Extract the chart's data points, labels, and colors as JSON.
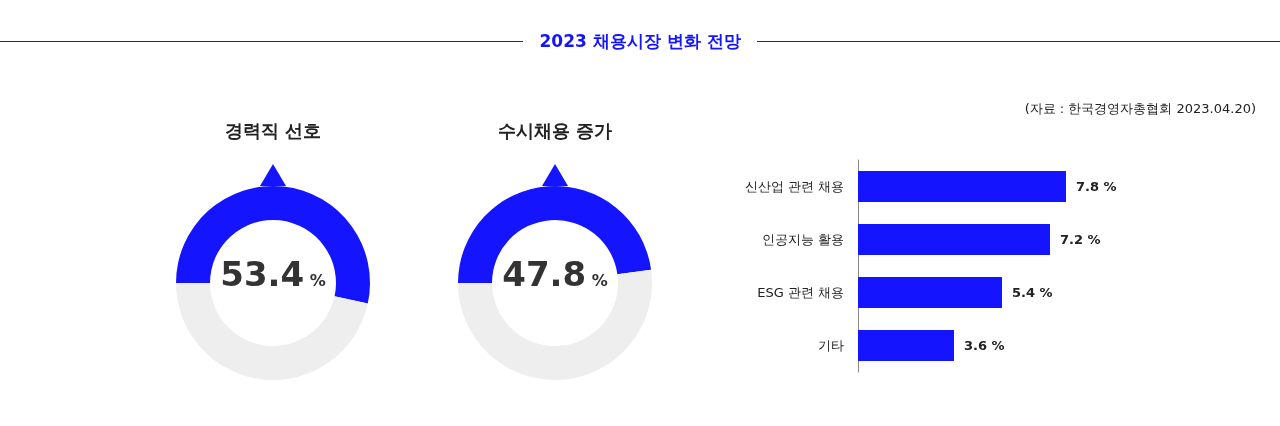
{
  "chart_data": [
    {
      "type": "other",
      "title": "2023 채용시장 변화 전망"
    },
    {
      "type": "donut",
      "title": "경력직 선호",
      "categories": [
        null,
        null
      ],
      "values": [
        53.4,
        46.6
      ],
      "colors": [
        "#1414ff",
        "#eeeeee"
      ],
      "value_labels": [
        "53.4 %",
        null
      ]
    },
    {
      "type": "donut",
      "title": "수시채용 증가",
      "categories": [
        null,
        null
      ],
      "values": [
        47.8,
        52.2
      ],
      "colors": [
        "#1414ff",
        "#eeeeee"
      ],
      "value_labels": [
        "47.8 %",
        null
      ]
    },
    {
      "type": "bar",
      "orientation": "horizontal",
      "categories": [
        "신산업 관련 채용",
        "인공지능 활용",
        "ESG 관련 채용",
        "기타"
      ],
      "values": [
        7.8,
        7.2,
        5.4,
        3.6
      ],
      "color": "#1414ff",
      "value_labels": [
        "7.8 %",
        "7.2 %",
        "5.4 %",
        "3.6 %"
      ],
      "annotations": [
        "(자료 : 한국경영자총협회 2023.04.20)"
      ]
    }
  ]
}
